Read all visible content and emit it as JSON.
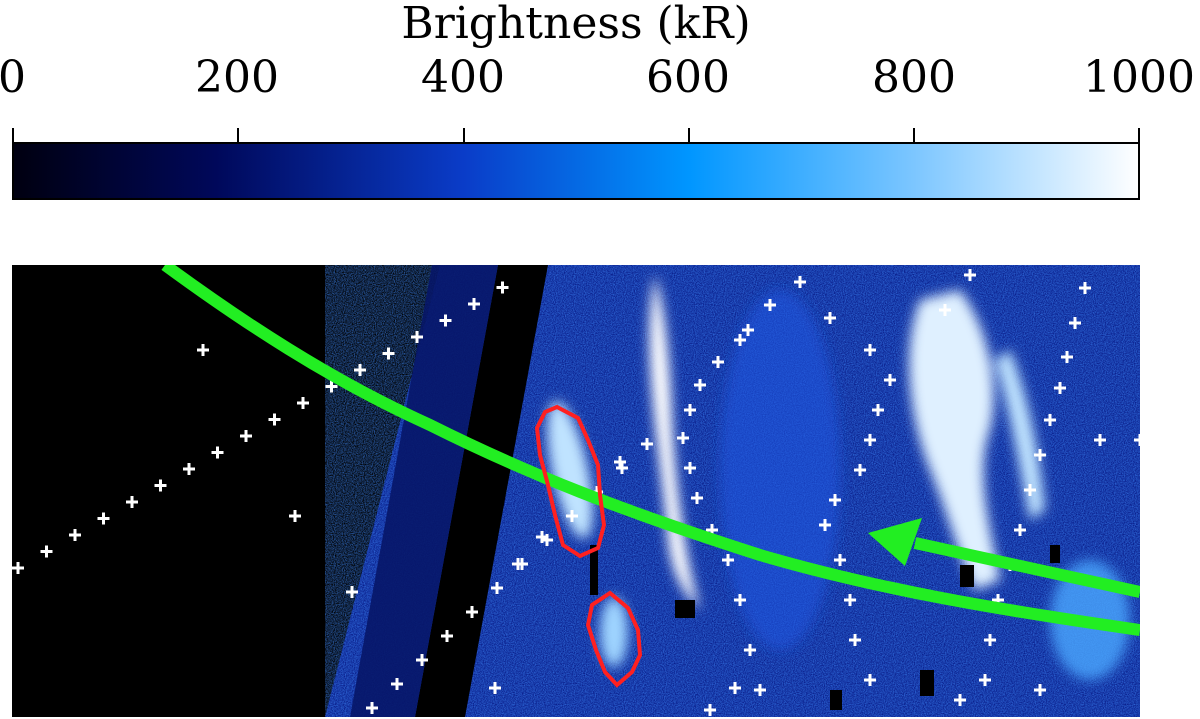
{
  "colorbar": {
    "label": "Brightness (kR)",
    "min": 0,
    "max": 1000,
    "ticks": [
      "0",
      "200",
      "400",
      "600",
      "800",
      "1000"
    ],
    "colors": [
      "#000010",
      "#000a5a",
      "#0a3cc8",
      "#0a96ff",
      "#8fd0ff",
      "#ffffff"
    ]
  },
  "image": {
    "background_color": "#000000",
    "field_color": "#0a1f8c",
    "grid_point_color": "#ffffff",
    "trajectory_color": "#22ee22",
    "footprint_color": "#ff2020"
  }
}
